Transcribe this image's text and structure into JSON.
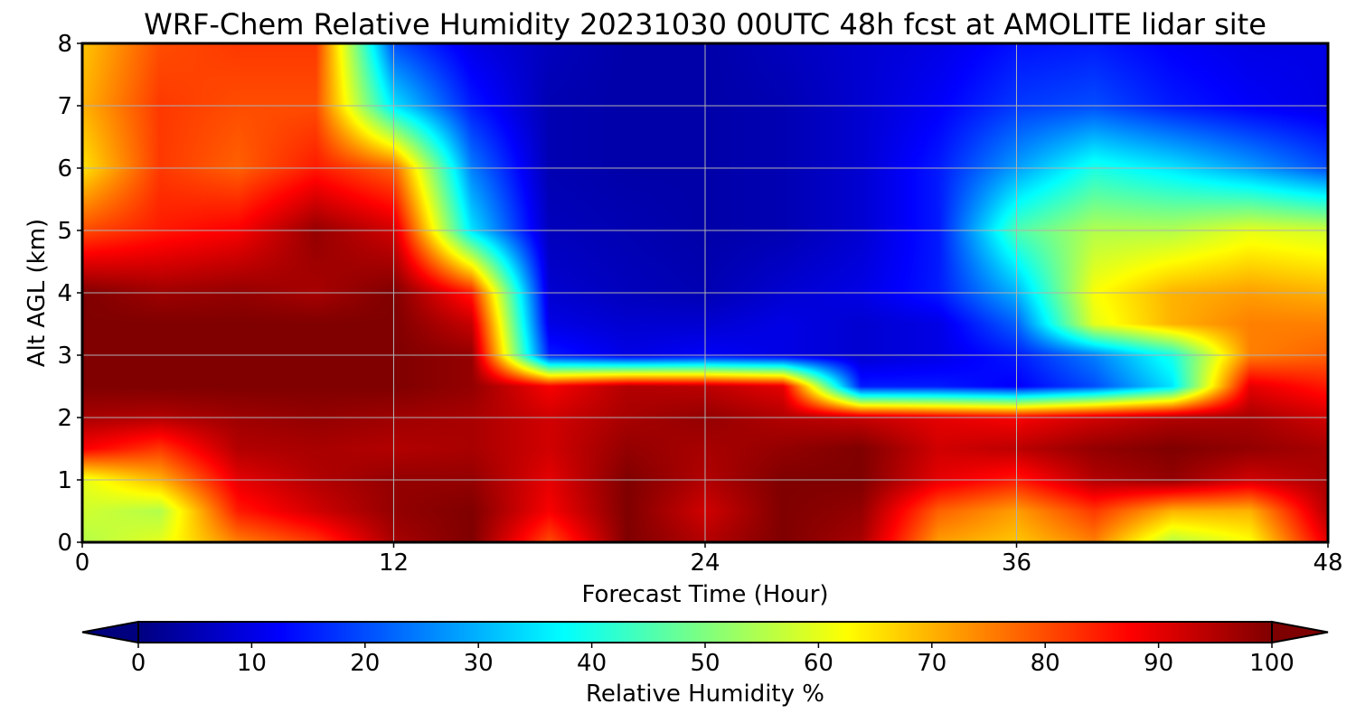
{
  "chart_data": {
    "type": "heatmap",
    "title": "WRF-Chem Relative Humidity 20231030 00UTC 48h fcst at AMOLITE lidar site",
    "xlabel": "Forecast Time (Hour)",
    "ylabel": "Alt AGL (km)",
    "xlim": [
      0,
      48
    ],
    "ylim": [
      0,
      8
    ],
    "x_ticks": [
      0,
      12,
      24,
      36,
      48
    ],
    "y_ticks": [
      0,
      1,
      2,
      3,
      4,
      5,
      6,
      7,
      8
    ],
    "grid": true,
    "colormap": "jet",
    "colorbar": {
      "label": "Relative Humidity %",
      "range": [
        0,
        100
      ],
      "ticks": [
        0,
        10,
        20,
        30,
        40,
        50,
        60,
        70,
        80,
        90,
        100
      ],
      "extend": "both",
      "orientation": "horizontal",
      "placement": "bottom"
    },
    "x": [
      0,
      3,
      6,
      9,
      12,
      15,
      18,
      21,
      24,
      27,
      30,
      33,
      36,
      39,
      42,
      45,
      48
    ],
    "y": [
      0,
      0.5,
      1,
      1.5,
      2,
      2.5,
      3,
      3.5,
      4,
      5,
      6,
      7,
      8
    ],
    "values": [
      [
        55,
        60,
        75,
        82,
        96,
        100,
        80,
        100,
        95,
        100,
        96,
        72,
        68,
        75,
        55,
        62,
        90
      ],
      [
        58,
        55,
        85,
        92,
        98,
        100,
        88,
        100,
        92,
        100,
        98,
        78,
        72,
        82,
        70,
        70,
        95
      ],
      [
        60,
        70,
        90,
        95,
        98,
        98,
        90,
        100,
        95,
        100,
        100,
        90,
        85,
        95,
        98,
        92,
        96
      ],
      [
        88,
        82,
        95,
        96,
        95,
        96,
        92,
        98,
        96,
        98,
        100,
        92,
        94,
        98,
        100,
        98,
        96
      ],
      [
        96,
        95,
        97,
        98,
        97,
        96,
        92,
        96,
        98,
        95,
        93,
        90,
        88,
        92,
        95,
        96,
        92
      ],
      [
        100,
        100,
        100,
        100,
        100,
        98,
        88,
        95,
        94,
        90,
        15,
        15,
        12,
        20,
        35,
        90,
        85
      ],
      [
        100,
        100,
        100,
        100,
        100,
        98,
        15,
        10,
        12,
        10,
        8,
        10,
        15,
        25,
        40,
        75,
        78
      ],
      [
        100,
        100,
        100,
        100,
        100,
        93,
        10,
        8,
        8,
        10,
        8,
        10,
        22,
        60,
        70,
        75,
        75
      ],
      [
        100,
        97,
        98,
        96,
        100,
        85,
        8,
        6,
        5,
        8,
        10,
        15,
        30,
        62,
        70,
        72,
        70
      ],
      [
        80,
        85,
        88,
        98,
        92,
        35,
        6,
        5,
        4,
        5,
        8,
        15,
        45,
        55,
        55,
        60,
        58
      ],
      [
        65,
        82,
        78,
        85,
        78,
        25,
        5,
        4,
        4,
        5,
        8,
        15,
        28,
        40,
        35,
        28,
        20
      ],
      [
        70,
        82,
        80,
        80,
        35,
        15,
        5,
        4,
        4,
        5,
        8,
        12,
        18,
        20,
        15,
        12,
        10
      ],
      [
        68,
        80,
        82,
        82,
        20,
        10,
        6,
        4,
        4,
        6,
        8,
        10,
        14,
        15,
        12,
        10,
        10
      ]
    ]
  }
}
